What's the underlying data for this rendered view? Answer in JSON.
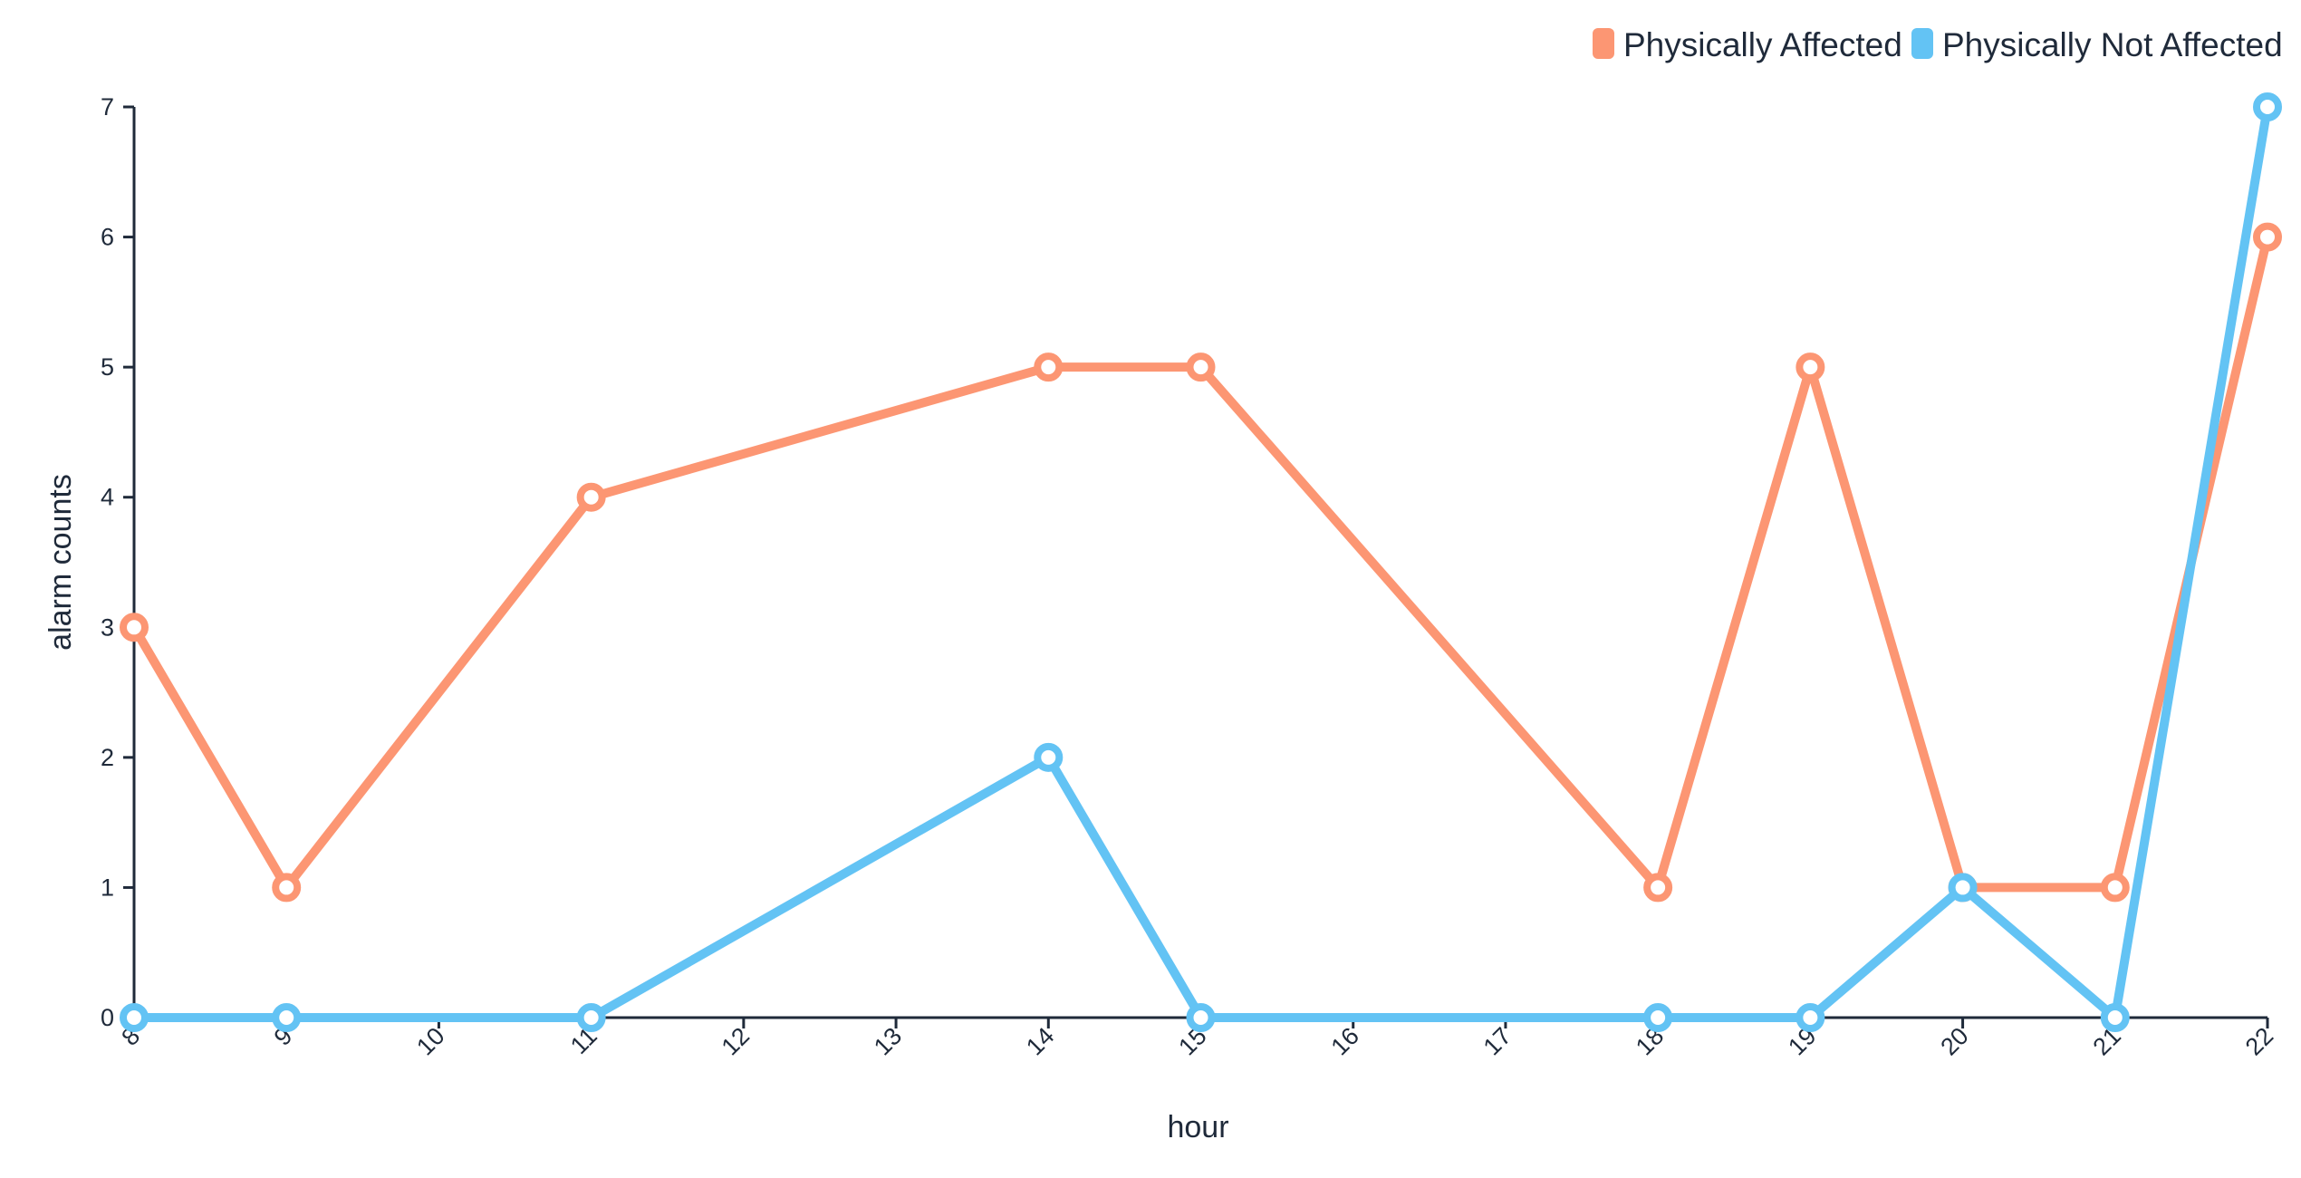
{
  "chart_data": {
    "type": "line",
    "xlabel": "hour",
    "ylabel": "alarm counts",
    "x": [
      8,
      9,
      10,
      11,
      12,
      13,
      14,
      15,
      16,
      17,
      18,
      19,
      20,
      21,
      22
    ],
    "xlim": [
      8,
      22
    ],
    "ylim": [
      0,
      7
    ],
    "yticks": [
      0,
      1,
      2,
      3,
      4,
      5,
      6,
      7
    ],
    "legend_position": "top-right",
    "grid": false,
    "series": [
      {
        "name": "Physically Affected",
        "color": "#fc9673",
        "points": [
          {
            "x": 8,
            "y": 3
          },
          {
            "x": 9,
            "y": 1
          },
          {
            "x": 11,
            "y": 4
          },
          {
            "x": 14,
            "y": 5
          },
          {
            "x": 15,
            "y": 5
          },
          {
            "x": 18,
            "y": 1
          },
          {
            "x": 19,
            "y": 5
          },
          {
            "x": 20,
            "y": 1
          },
          {
            "x": 21,
            "y": 1
          },
          {
            "x": 22,
            "y": 6
          }
        ]
      },
      {
        "name": "Physically Not Affected",
        "color": "#63c3f4",
        "points": [
          {
            "x": 8,
            "y": 0
          },
          {
            "x": 9,
            "y": 0
          },
          {
            "x": 11,
            "y": 0
          },
          {
            "x": 14,
            "y": 2
          },
          {
            "x": 15,
            "y": 0
          },
          {
            "x": 18,
            "y": 0
          },
          {
            "x": 19,
            "y": 0
          },
          {
            "x": 20,
            "y": 1
          },
          {
            "x": 21,
            "y": 0
          },
          {
            "x": 22,
            "y": 7
          }
        ]
      }
    ]
  }
}
